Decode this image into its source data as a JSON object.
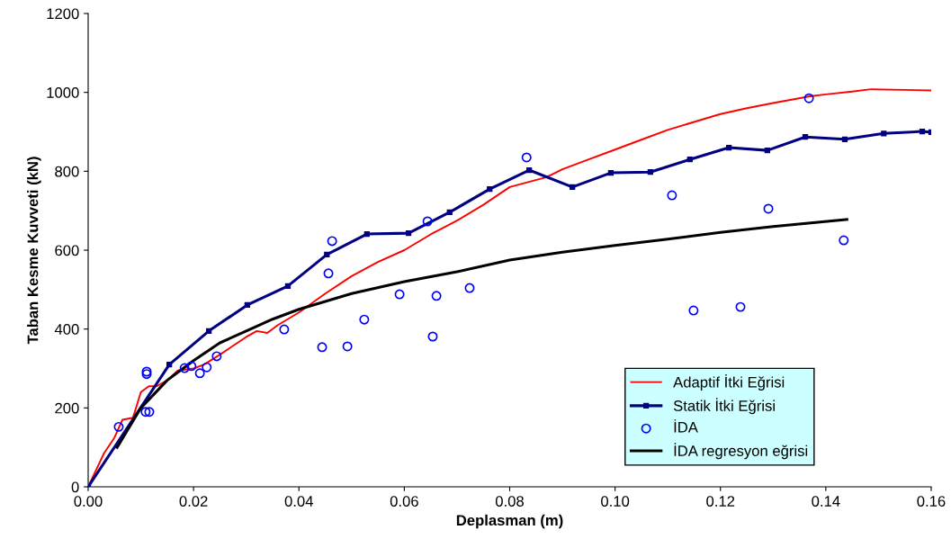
{
  "chart_data": {
    "type": "line",
    "xlabel": "Deplasman (m)",
    "ylabel": "Taban Kesme Kuvveti (kN)",
    "xlim": [
      0,
      0.16
    ],
    "xticks": [
      {
        "value": 0,
        "label": "0.00"
      },
      {
        "value": 0.02,
        "label": "0.02"
      },
      {
        "value": 0.04,
        "label": "0.04"
      },
      {
        "value": 0.06,
        "label": "0.06"
      },
      {
        "value": 0.08,
        "label": "0.08"
      },
      {
        "value": 0.1,
        "label": "0.10"
      },
      {
        "value": 0.12,
        "label": "0.12"
      },
      {
        "value": 0.14,
        "label": "0.14"
      },
      {
        "value": 0.16,
        "label": "0.16"
      }
    ],
    "ylim": [
      0,
      1200
    ],
    "yticks": [
      0,
      200,
      400,
      600,
      800,
      1000,
      1200
    ],
    "grid": false,
    "legend": "bottom right",
    "series": [
      {
        "name": "Adaptif İtki Eğrisi",
        "color": "#ff0000",
        "marker": "none",
        "x": [
          0,
          0.003,
          0.005,
          0.0065,
          0.0085,
          0.01,
          0.0115,
          0.013,
          0.015,
          0.017,
          0.02,
          0.022,
          0.025,
          0.03,
          0.032,
          0.034,
          0.036,
          0.04,
          0.045,
          0.05,
          0.055,
          0.06,
          0.065,
          0.07,
          0.075,
          0.08,
          0.087,
          0.09,
          0.095,
          0.1,
          0.105,
          0.11,
          0.115,
          0.12,
          0.125,
          0.13,
          0.137,
          0.14,
          0.145,
          0.1486,
          0.16
        ],
        "values": [
          0,
          85,
          125,
          170,
          175,
          240,
          255,
          255,
          270,
          295,
          300,
          310,
          335,
          380,
          395,
          390,
          410,
          442,
          490,
          534,
          570,
          600,
          640,
          675,
          715,
          760,
          785,
          805,
          830,
          855,
          880,
          905,
          925,
          945,
          960,
          973,
          990,
          995,
          1002,
          1008,
          1005
        ]
      },
      {
        "name": "Statik İtki Eğrisi",
        "color": "#000080",
        "marker": "square",
        "x": [
          0,
          0.0154,
          0.0229,
          0.0302,
          0.0379,
          0.0453,
          0.0529,
          0.0608,
          0.0686,
          0.0762,
          0.0837,
          0.0919,
          0.0992,
          0.1067,
          0.1142,
          0.1216,
          0.1289,
          0.1361,
          0.1436,
          0.151,
          0.1583,
          0.16
        ],
        "values": [
          0,
          310,
          395,
          461,
          509,
          589,
          641,
          643,
          696,
          755,
          803,
          760,
          796,
          798,
          830,
          860,
          853,
          887,
          881,
          896,
          901,
          899
        ]
      },
      {
        "name": "İDA",
        "type": "scatter",
        "color": "#0000ff",
        "marker": "circle",
        "x": [
          0.0058,
          0.0111,
          0.0111,
          0.0109,
          0.0116,
          0.0183,
          0.0196,
          0.0212,
          0.0225,
          0.0244,
          0.0372,
          0.0444,
          0.0492,
          0.0524,
          0.0456,
          0.0463,
          0.0591,
          0.0654,
          0.0661,
          0.0644,
          0.0724,
          0.0832,
          0.1108,
          0.1149,
          0.1238,
          0.1291,
          0.1434,
          0.1368
        ],
        "values": [
          152,
          292,
          286,
          190,
          190,
          301,
          306,
          288,
          303,
          331,
          399,
          354,
          356,
          424,
          541,
          623,
          488,
          381,
          484,
          673,
          504,
          835,
          739,
          447,
          456,
          705,
          625,
          985
        ]
      },
      {
        "name": "İDA regresyon eğrisi",
        "color": "#000000",
        "marker": "none",
        "x": [
          0.0055,
          0.01,
          0.015,
          0.02,
          0.025,
          0.03,
          0.035,
          0.04,
          0.05,
          0.06,
          0.07,
          0.08,
          0.09,
          0.1,
          0.11,
          0.12,
          0.13,
          0.144
        ],
        "values": [
          100,
          200,
          270,
          320,
          365,
          395,
          425,
          450,
          490,
          520,
          545,
          575,
          595,
          612,
          628,
          645,
          660,
          678
        ]
      }
    ]
  }
}
